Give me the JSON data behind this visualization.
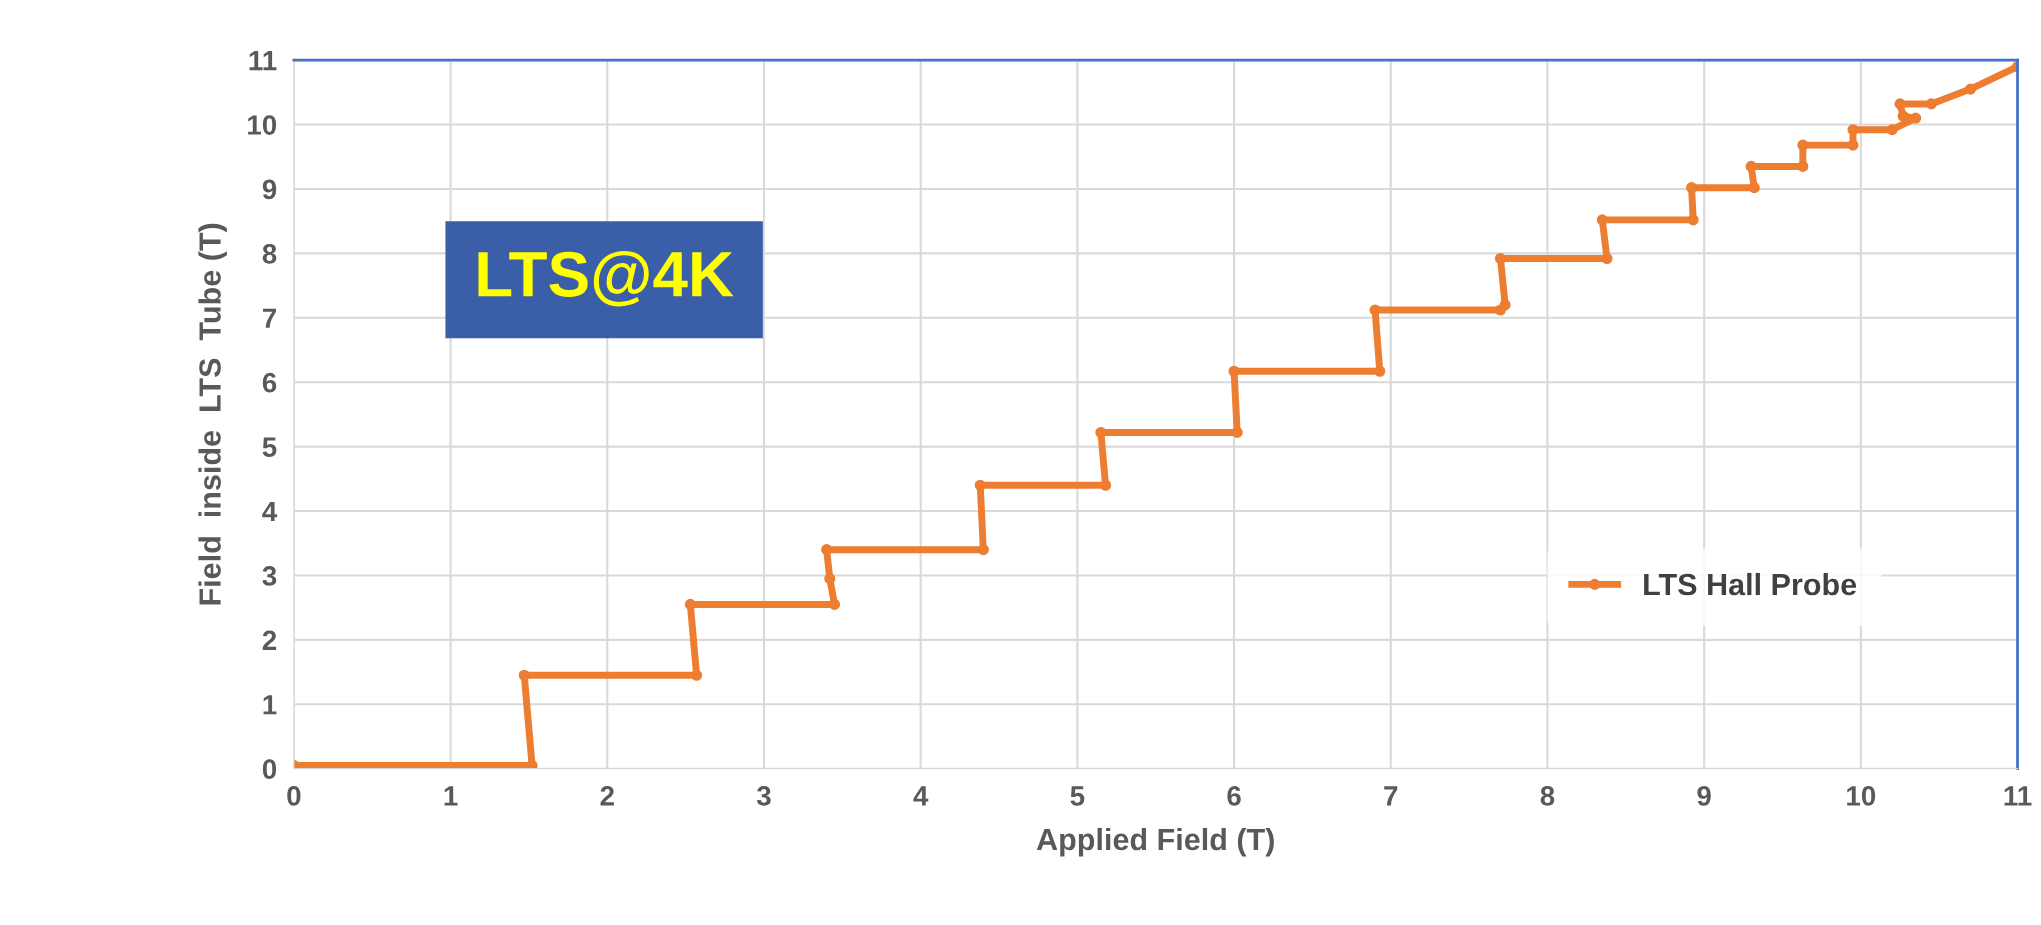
{
  "chart_data": {
    "type": "line",
    "xlabel": "Applied Field (T)",
    "ylabel": "Field  inside  LTS  Tube (T)",
    "annotations": [
      "LTS@4K"
    ],
    "series": [
      {
        "name": "LTS Hall Probe",
        "color": "#ed7d31",
        "x": [
          0,
          1.52,
          1.47,
          2.57,
          2.53,
          3.45,
          3.42,
          3.4,
          4.4,
          4.38,
          5.18,
          5.15,
          6.02,
          6.0,
          6.93,
          6.9,
          7.7,
          7.73,
          7.7,
          8.38,
          8.35,
          8.93,
          8.92,
          9.32,
          9.3,
          9.63,
          9.63,
          9.95,
          9.95,
          10.2,
          10.35,
          10.27,
          10.25,
          10.45,
          10.7,
          11
        ],
        "values": [
          0.05,
          0.05,
          1.45,
          1.45,
          2.55,
          2.55,
          2.95,
          3.4,
          3.4,
          4.4,
          4.4,
          5.22,
          5.22,
          6.17,
          6.17,
          7.12,
          7.12,
          7.2,
          7.92,
          7.92,
          8.52,
          8.52,
          9.02,
          9.02,
          9.35,
          9.35,
          9.68,
          9.68,
          9.92,
          9.92,
          10.1,
          10.13,
          10.32,
          10.32,
          10.55,
          10.9
        ]
      }
    ],
    "xlim": [
      0,
      11
    ],
    "xticks": [
      0,
      1,
      2,
      3,
      4,
      5,
      6,
      7,
      8,
      9,
      10,
      11
    ],
    "ylim": [
      0,
      11
    ],
    "yticks": [
      0,
      1,
      2,
      3,
      4,
      5,
      6,
      7,
      8,
      9,
      10,
      11
    ],
    "grid": true,
    "legend": "bottom right",
    "marker": "circle",
    "line_style": "solid"
  }
}
